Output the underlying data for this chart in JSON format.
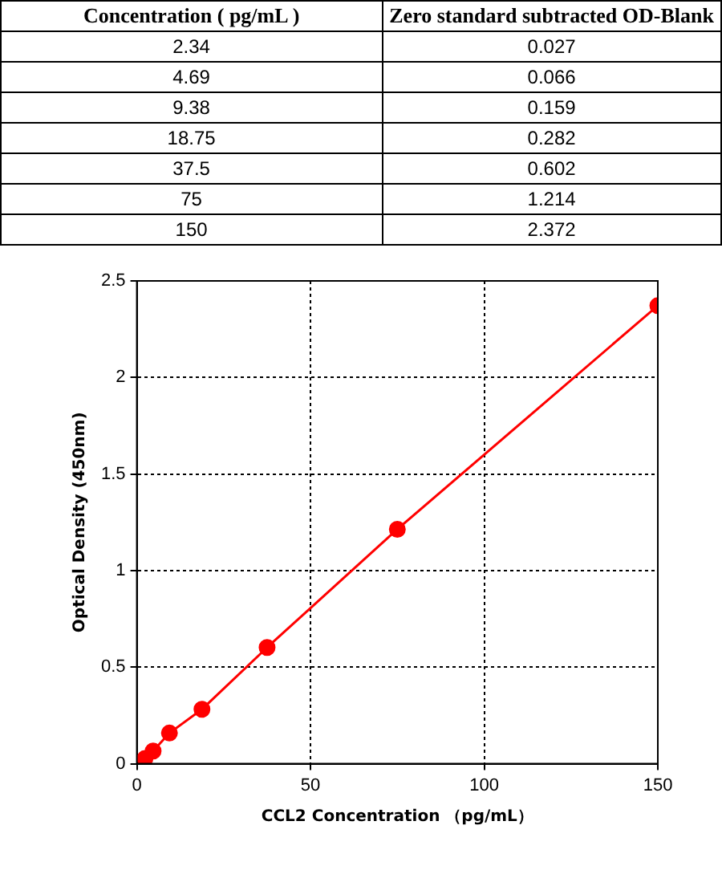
{
  "chart_data": [
    {
      "type": "other",
      "annotations": [
        "Concentration ( pg/mL )",
        "Zero standard subtracted OD-Blank"
      ],
      "categories": [
        "2.34",
        "4.69",
        "9.38",
        "18.75",
        "37.5",
        "75",
        "150"
      ],
      "values": [
        0.027,
        0.066,
        0.159,
        0.282,
        0.602,
        1.214,
        2.372
      ],
      "data_labels": true
    },
    {
      "type": "line",
      "xlabel": "CCL2 Concentration （pg/mL）",
      "ylabel": "Optical Density (450nm)",
      "x": [
        2.34,
        4.69,
        9.38,
        18.75,
        37.5,
        75,
        150
      ],
      "series": [
        {
          "color": "#ff0000",
          "values": [
            0.027,
            0.066,
            0.159,
            0.282,
            0.602,
            1.214,
            2.372
          ]
        }
      ],
      "xlim": [
        0,
        150
      ],
      "xticks": [
        0,
        50,
        100,
        150
      ],
      "ylim": [
        0,
        2.5
      ],
      "yticks": [
        0,
        0.5,
        1,
        1.5,
        2,
        2.5
      ],
      "grid": true,
      "marker": "circle",
      "line_style": "solid"
    }
  ]
}
